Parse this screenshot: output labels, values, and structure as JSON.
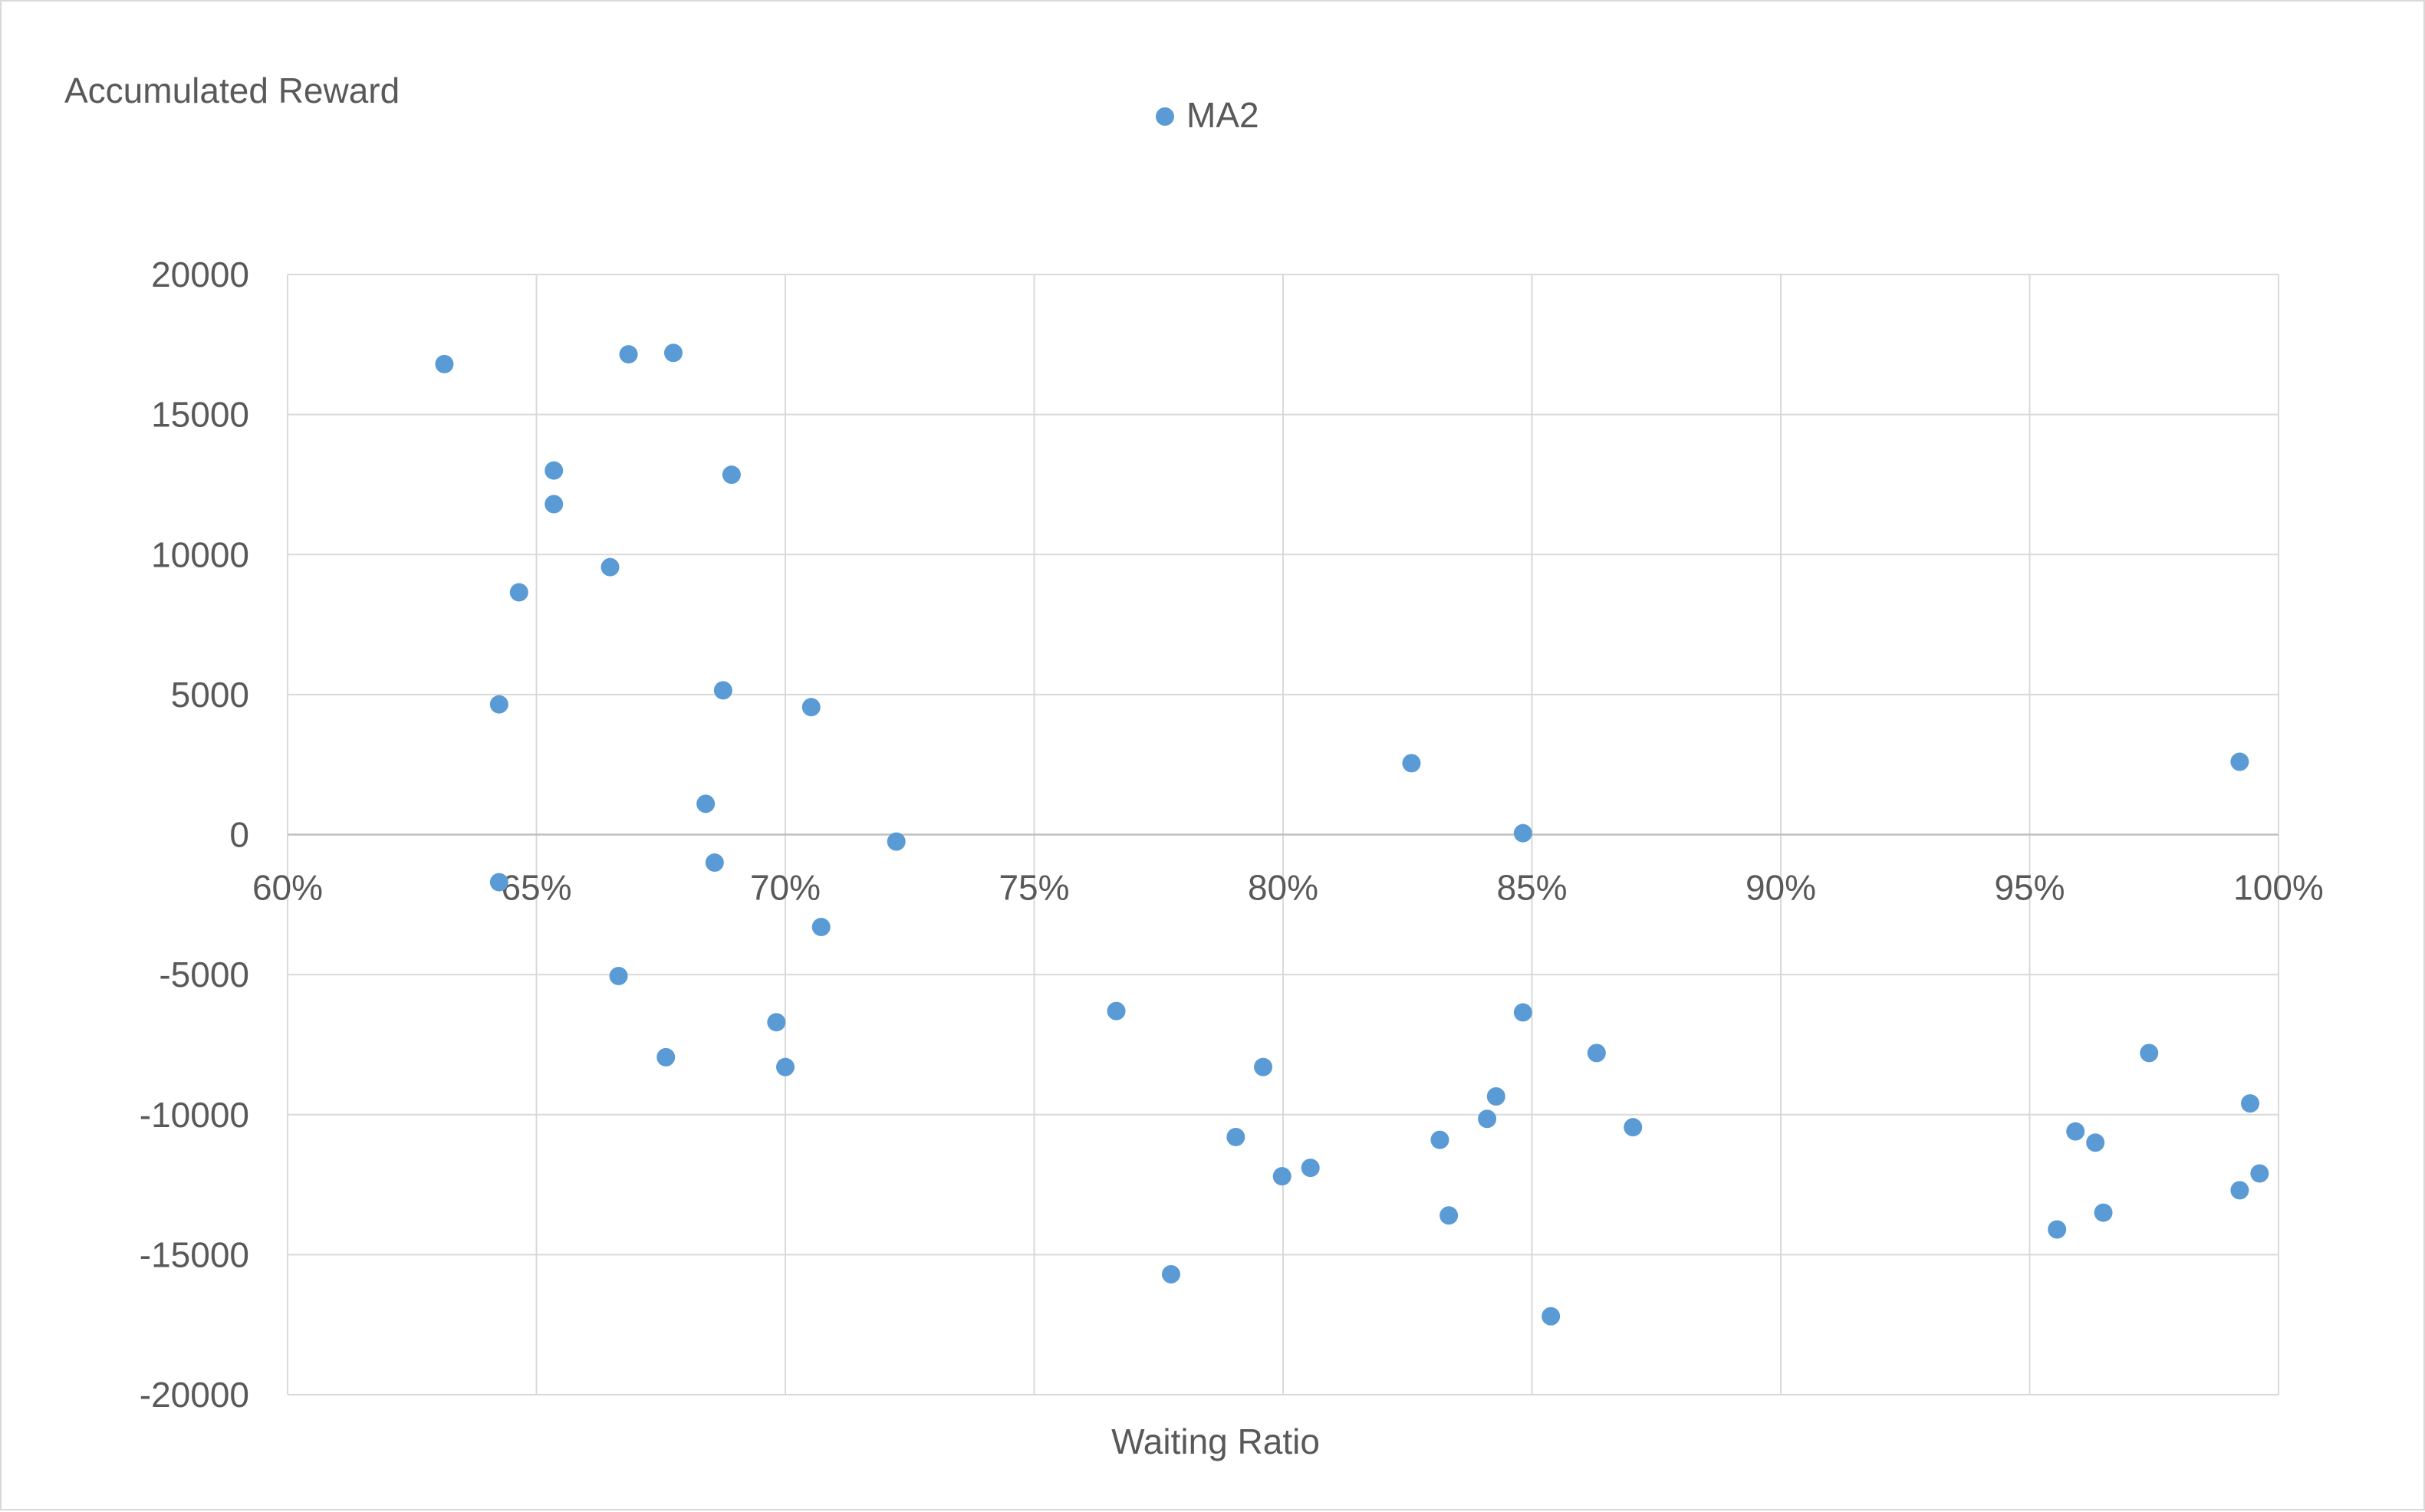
{
  "chart_data": {
    "type": "scatter",
    "ylabel": "Accumulated Reward",
    "xlabel": "Waiting Ratio",
    "xlim": [
      0.6,
      1.0
    ],
    "ylim": [
      -20000,
      20000
    ],
    "x_ticks": [
      0.6,
      0.65,
      0.7,
      0.75,
      0.8,
      0.85,
      0.9,
      0.95,
      1.0
    ],
    "x_tick_labels": [
      "60%",
      "65%",
      "70%",
      "75%",
      "80%",
      "85%",
      "90%",
      "95%",
      "100%"
    ],
    "y_ticks": [
      20000,
      15000,
      10000,
      5000,
      0,
      -5000,
      -10000,
      -15000,
      -20000
    ],
    "y_tick_labels": [
      "20000",
      "15000",
      "10000",
      "5000",
      "0",
      "-5000",
      "-10000",
      "-15000",
      "-20000"
    ],
    "grid": true,
    "legend_position": "top-center",
    "series": [
      {
        "name": "MA2",
        "color": "#5b9bd5",
        "points": [
          [
            0.6315,
            16800
          ],
          [
            0.6425,
            4650
          ],
          [
            0.6425,
            -1700
          ],
          [
            0.6465,
            8650
          ],
          [
            0.6535,
            13000
          ],
          [
            0.6535,
            11800
          ],
          [
            0.6648,
            9550
          ],
          [
            0.6665,
            -5050
          ],
          [
            0.6685,
            17150
          ],
          [
            0.676,
            -7950
          ],
          [
            0.6775,
            17200
          ],
          [
            0.684,
            1100
          ],
          [
            0.6858,
            -1000
          ],
          [
            0.6875,
            5150
          ],
          [
            0.6892,
            12850
          ],
          [
            0.6982,
            -6700
          ],
          [
            0.7,
            -8300
          ],
          [
            0.7052,
            4550
          ],
          [
            0.7072,
            -3300
          ],
          [
            0.7223,
            -250
          ],
          [
            0.7665,
            -6300
          ],
          [
            0.7775,
            -15700
          ],
          [
            0.7905,
            -10800
          ],
          [
            0.796,
            -8300
          ],
          [
            0.7998,
            -12200
          ],
          [
            0.8055,
            -11900
          ],
          [
            0.8258,
            2550
          ],
          [
            0.8315,
            -10900
          ],
          [
            0.8333,
            -13600
          ],
          [
            0.841,
            -10150
          ],
          [
            0.8428,
            -9350
          ],
          [
            0.8482,
            50
          ],
          [
            0.8482,
            -6350
          ],
          [
            0.8538,
            -17200
          ],
          [
            0.863,
            -7800
          ],
          [
            0.8703,
            -10450
          ],
          [
            0.9555,
            -14100
          ],
          [
            0.9592,
            -10600
          ],
          [
            0.9632,
            -11000
          ],
          [
            0.9648,
            -13500
          ],
          [
            0.974,
            -7800
          ],
          [
            0.9922,
            2600
          ],
          [
            0.9922,
            -12700
          ],
          [
            0.9943,
            -9600
          ],
          [
            0.9962,
            -12100
          ]
        ]
      }
    ]
  }
}
